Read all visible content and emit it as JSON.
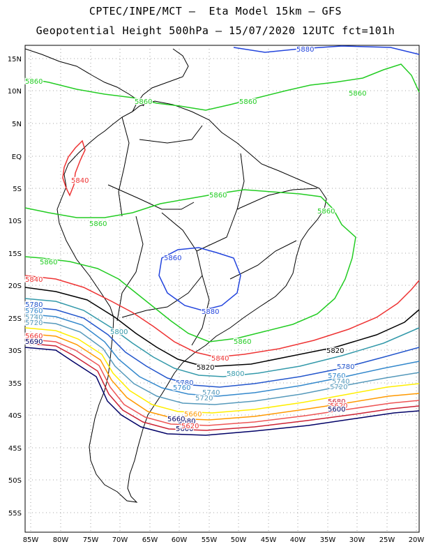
{
  "header": {
    "line1": "CPTEC/INPE/MCT –  Eta Model 15km – GFS",
    "line2": "Geopotential Height 500hPa – 15/07/2020 12UTC fct=101h"
  },
  "axes": {
    "lat_labels": [
      "15N",
      "10N",
      "5N",
      "EQ",
      "5S",
      "10S",
      "15S",
      "20S",
      "25S",
      "30S",
      "35S",
      "40S",
      "45S",
      "50S",
      "55S"
    ],
    "lon_labels": [
      "85W",
      "80W",
      "75W",
      "70W",
      "65W",
      "60W",
      "55W",
      "50W",
      "45W",
      "40W",
      "35W",
      "30W",
      "25W",
      "20W"
    ]
  },
  "contours": [
    {
      "value": 5880,
      "color": "#2244dd"
    },
    {
      "value": 5860,
      "color": "#22cc22"
    },
    {
      "value": 5840,
      "color": "#ee3333"
    },
    {
      "value": 5820,
      "color": "#000000"
    },
    {
      "value": 5800,
      "color": "#3399aa"
    },
    {
      "value": 5780,
      "color": "#2255cc"
    },
    {
      "value": 5760,
      "color": "#3388cc"
    },
    {
      "value": 5740,
      "color": "#5599bb"
    },
    {
      "value": 5720,
      "color": "#ffee00"
    },
    {
      "value": 5700,
      "color": "#ff9900"
    },
    {
      "value": 5680,
      "color": "#ee5555"
    },
    {
      "value": 5660,
      "color": "#cc2233"
    },
    {
      "value": 5640,
      "color": "#000066"
    }
  ],
  "contour_labels": [
    {
      "text": "5880",
      "color": "#2244dd"
    },
    {
      "text": "5860",
      "color": "#22cc22"
    },
    {
      "text": "5860",
      "color": "#22cc22"
    },
    {
      "text": "5860",
      "color": "#22cc22"
    },
    {
      "text": "5860",
      "color": "#22cc22"
    },
    {
      "text": "5860",
      "color": "#22cc22"
    },
    {
      "text": "5860",
      "color": "#22cc22"
    },
    {
      "text": "5860",
      "color": "#22cc22"
    },
    {
      "text": "5860",
      "color": "#22cc22"
    },
    {
      "text": "5860",
      "color": "#22cc22"
    },
    {
      "text": "5860",
      "color": "#2244dd"
    },
    {
      "text": "5880",
      "color": "#2244dd"
    },
    {
      "text": "5840",
      "color": "#ee3333"
    },
    {
      "text": "5840",
      "color": "#ee3333"
    },
    {
      "text": "5840",
      "color": "#ee3333"
    },
    {
      "text": "5820",
      "color": "#000000"
    },
    {
      "text": "5820",
      "color": "#000000"
    },
    {
      "text": "5800",
      "color": "#3399aa"
    },
    {
      "text": "5800",
      "color": "#3399aa"
    },
    {
      "text": "5780",
      "color": "#2255cc"
    },
    {
      "text": "5780",
      "color": "#2255cc"
    },
    {
      "text": "5780",
      "color": "#2255cc"
    },
    {
      "text": "5760",
      "color": "#3388cc"
    },
    {
      "text": "5760",
      "color": "#3388cc"
    },
    {
      "text": "5760",
      "color": "#3388cc"
    },
    {
      "text": "5740",
      "color": "#5599bb"
    },
    {
      "text": "5740",
      "color": "#5599bb"
    },
    {
      "text": "5740",
      "color": "#5599bb"
    },
    {
      "text": "5720",
      "color": "#5599bb"
    },
    {
      "text": "5720",
      "color": "#5599bb"
    },
    {
      "text": "5720",
      "color": "#5599bb"
    },
    {
      "text": "5660",
      "color": "#ff9900"
    },
    {
      "text": "5680",
      "color": "#cc2233"
    },
    {
      "text": "5680",
      "color": "#000066"
    },
    {
      "text": "5660",
      "color": "#000066"
    },
    {
      "text": "5620",
      "color": "#ee3333"
    },
    {
      "text": "5600",
      "color": "#000066"
    },
    {
      "text": "5600",
      "color": "#000066"
    },
    {
      "text": "5660",
      "color": "#ee3333"
    },
    {
      "text": "5690",
      "color": "#000066"
    },
    {
      "text": "5620",
      "color": "#ee3333"
    }
  ]
}
